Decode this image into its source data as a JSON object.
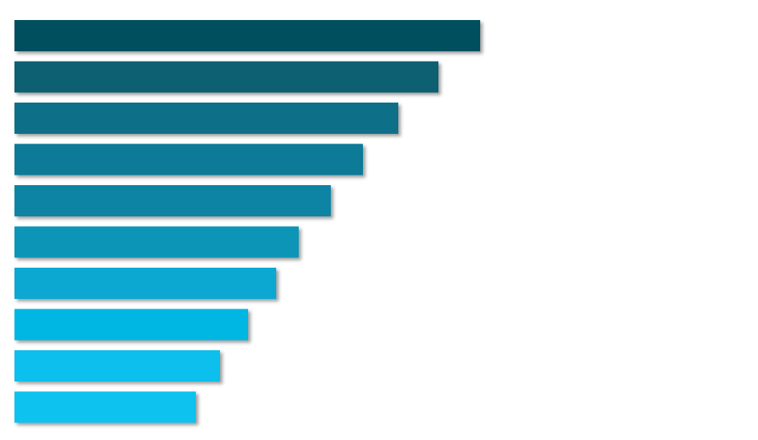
{
  "chart_data": {
    "type": "bar",
    "orientation": "horizontal",
    "title": "",
    "xlabel": "",
    "ylabel": "",
    "categories": [
      "",
      "",
      "",
      "",
      "",
      "",
      "",
      "",
      "",
      ""
    ],
    "values": [
      580,
      528,
      478,
      434,
      394,
      354,
      326,
      291,
      256,
      226
    ],
    "xlim": [
      0,
      926
    ],
    "grid": false,
    "legend": "none",
    "colors": [
      "#06505f",
      "#0a5f72",
      "#0a6f88",
      "#0a7a97",
      "#0a84a3",
      "#0c95b8",
      "#0ba8d2",
      "#06b6e2",
      "#0abfec",
      "#0ac2ef"
    ]
  }
}
